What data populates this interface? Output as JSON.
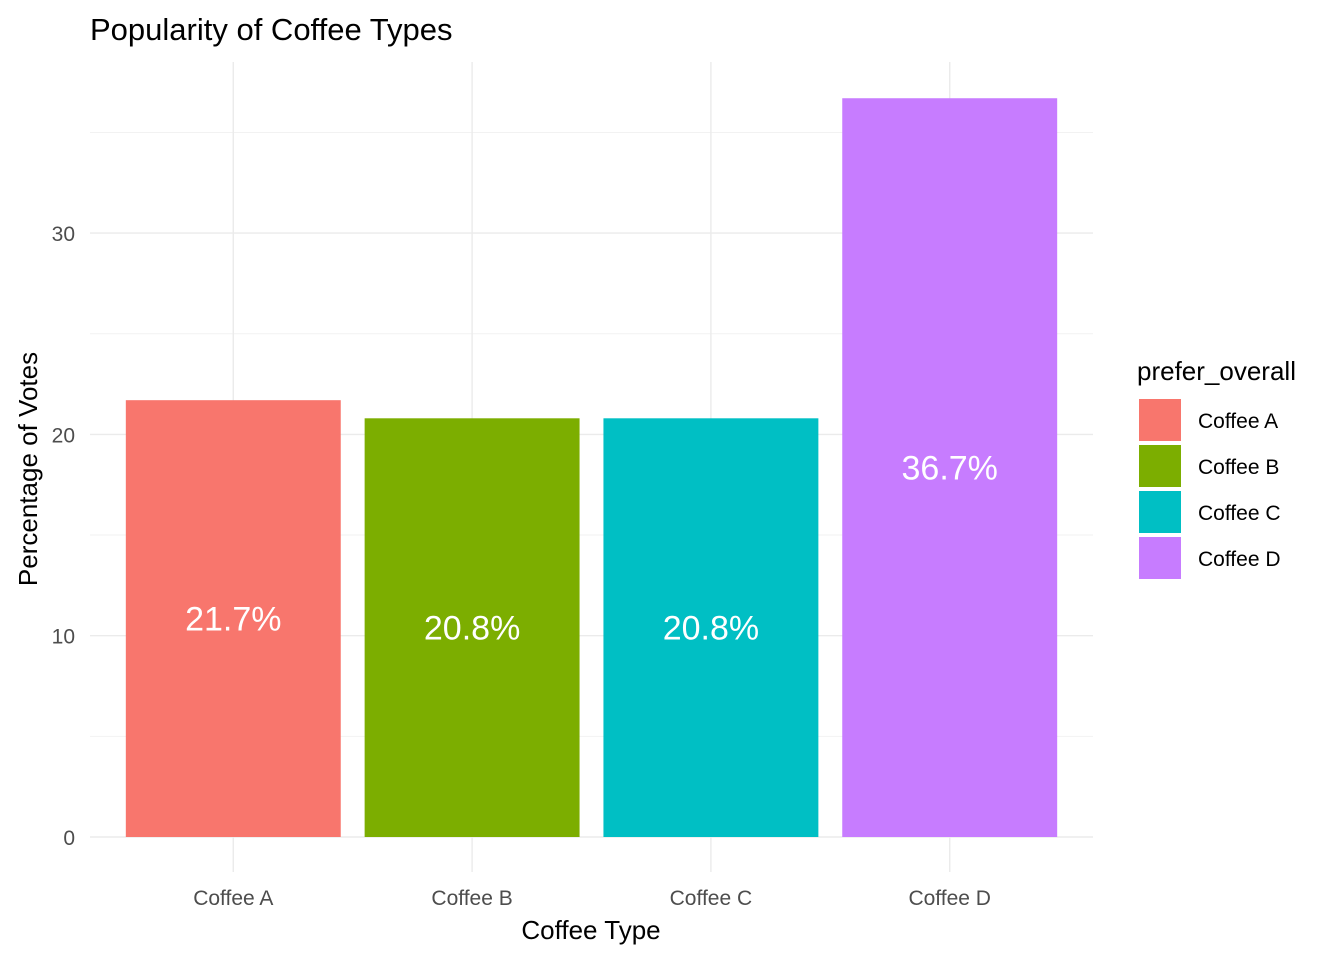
{
  "chart_data": {
    "type": "bar",
    "title": "Popularity of Coffee Types",
    "xlabel": "Coffee Type",
    "ylabel": "Percentage of Votes",
    "categories": [
      "Coffee A",
      "Coffee B",
      "Coffee C",
      "Coffee D"
    ],
    "values": [
      21.7,
      20.8,
      20.8,
      36.7
    ],
    "data_labels": [
      "21.7%",
      "20.8%",
      "20.8%",
      "36.7%"
    ],
    "colors": [
      "#F8766D",
      "#7CAE00",
      "#00BFC4",
      "#C77CFF"
    ],
    "ylim": [
      0,
      38.5
    ],
    "yticks": [
      0,
      10,
      20,
      30
    ],
    "ytick_labels": [
      "0",
      "10",
      "20",
      "30"
    ],
    "grid": true,
    "legend": {
      "title": "prefer_overall",
      "position": "right",
      "entries": [
        "Coffee A",
        "Coffee B",
        "Coffee C",
        "Coffee D"
      ]
    }
  }
}
